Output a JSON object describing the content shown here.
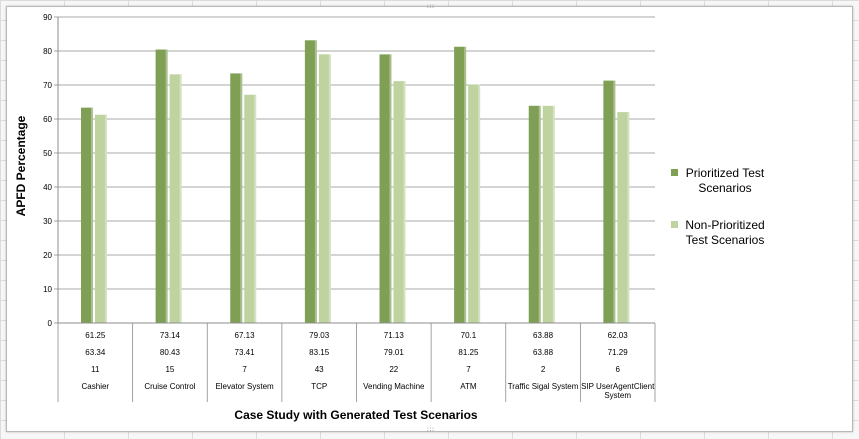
{
  "chart_data": {
    "type": "bar",
    "title": "",
    "xlabel": "Case Study with Generated Test Scenarios",
    "ylabel": "APFD Percentage",
    "ylim": [
      0,
      90
    ],
    "yticks": [
      0,
      10,
      20,
      30,
      40,
      50,
      60,
      70,
      80,
      90
    ],
    "grid": true,
    "legend_position": "right",
    "categories": [
      "Cashier",
      "Cruise Control",
      "Elevator System",
      "TCP",
      "Vending Machine",
      "ATM",
      "Traffic Sigal System",
      "SIP UserAgentClient System"
    ],
    "category_lines": [
      [
        "Cashier"
      ],
      [
        "Cruise Control"
      ],
      [
        "Elevator System"
      ],
      [
        "TCP"
      ],
      [
        "Vending Machine"
      ],
      [
        "ATM"
      ],
      [
        "Traffic Sigal System"
      ],
      [
        "SIP UserAgentClient",
        "System"
      ]
    ],
    "series": [
      {
        "name": "Prioritized Test Scenarios",
        "name_lines": [
          "Prioritized Test",
          "Scenarios"
        ],
        "color": "#7f9f55",
        "values": [
          63.34,
          80.43,
          73.41,
          83.15,
          79.01,
          81.25,
          63.88,
          71.29
        ]
      },
      {
        "name": "Non-Prioritized Test Scenarios",
        "name_lines": [
          "Non-Prioritized",
          "Test Scenarios"
        ],
        "color": "#bfd3a0",
        "values": [
          61.25,
          73.14,
          67.13,
          79.03,
          71.13,
          70.1,
          63.88,
          62.03
        ]
      }
    ],
    "table_rows": [
      [
        "61.25",
        "73.14",
        "67.13",
        "79.03",
        "71.13",
        "70.1",
        "63.88",
        "62.03"
      ],
      [
        "63.34",
        "80.43",
        "73.41",
        "83.15",
        "79.01",
        "81.25",
        "63.88",
        "71.29"
      ],
      [
        "11",
        "15",
        "7",
        "43",
        "22",
        "7",
        "2",
        "6"
      ]
    ]
  }
}
